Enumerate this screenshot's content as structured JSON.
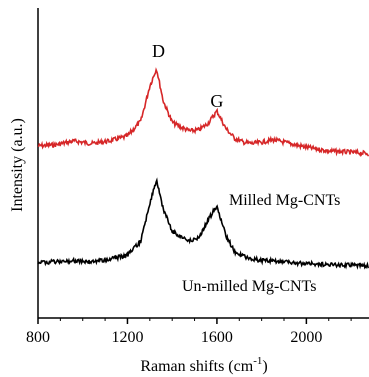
{
  "chart_data": {
    "type": "line",
    "xlabel": "Raman shifts (cm",
    "xlabel_sup": "-1",
    "xlabel_close": ")",
    "ylabel": "Intensity (a.u.)",
    "xlim": [
      800,
      2280
    ],
    "x_ticks": [
      800,
      1200,
      1600,
      2000
    ],
    "y_ticks_shown": false,
    "grid": false,
    "annotations": [
      {
        "text": "D",
        "x": 1330
      },
      {
        "text": "G",
        "x": 1600
      }
    ],
    "series": [
      {
        "name": "Milled Mg-CNTs",
        "color": "#d62728",
        "x": [
          800,
          880,
          960,
          1040,
          1120,
          1200,
          1260,
          1300,
          1330,
          1360,
          1400,
          1440,
          1480,
          1520,
          1560,
          1600,
          1640,
          1680,
          1720,
          1760,
          1800,
          1850,
          1900,
          1950,
          2000,
          2100,
          2200,
          2280
        ],
        "y": [
          0.0,
          0.01,
          0.04,
          0.02,
          0.04,
          0.08,
          0.2,
          0.48,
          0.62,
          0.36,
          0.19,
          0.15,
          0.12,
          0.13,
          0.18,
          0.28,
          0.14,
          0.06,
          0.03,
          0.02,
          0.03,
          0.05,
          0.03,
          0.01,
          -0.01,
          -0.04,
          -0.05,
          -0.06
        ]
      },
      {
        "name": "Un-milled Mg-CNTs",
        "color": "#000000",
        "x": [
          800,
          880,
          960,
          1040,
          1120,
          1200,
          1260,
          1300,
          1330,
          1360,
          1400,
          1440,
          1480,
          1520,
          1560,
          1600,
          1640,
          1680,
          1720,
          1760,
          1800,
          1850,
          1900,
          1950,
          2000,
          2100,
          2200,
          2280
        ],
        "y": [
          0.0,
          0.0,
          0.01,
          0.0,
          0.02,
          0.05,
          0.15,
          0.42,
          0.58,
          0.38,
          0.22,
          0.18,
          0.15,
          0.17,
          0.3,
          0.4,
          0.19,
          0.07,
          0.04,
          0.02,
          0.01,
          0.01,
          0.0,
          -0.01,
          -0.01,
          -0.02,
          -0.02,
          -0.03
        ]
      }
    ]
  }
}
